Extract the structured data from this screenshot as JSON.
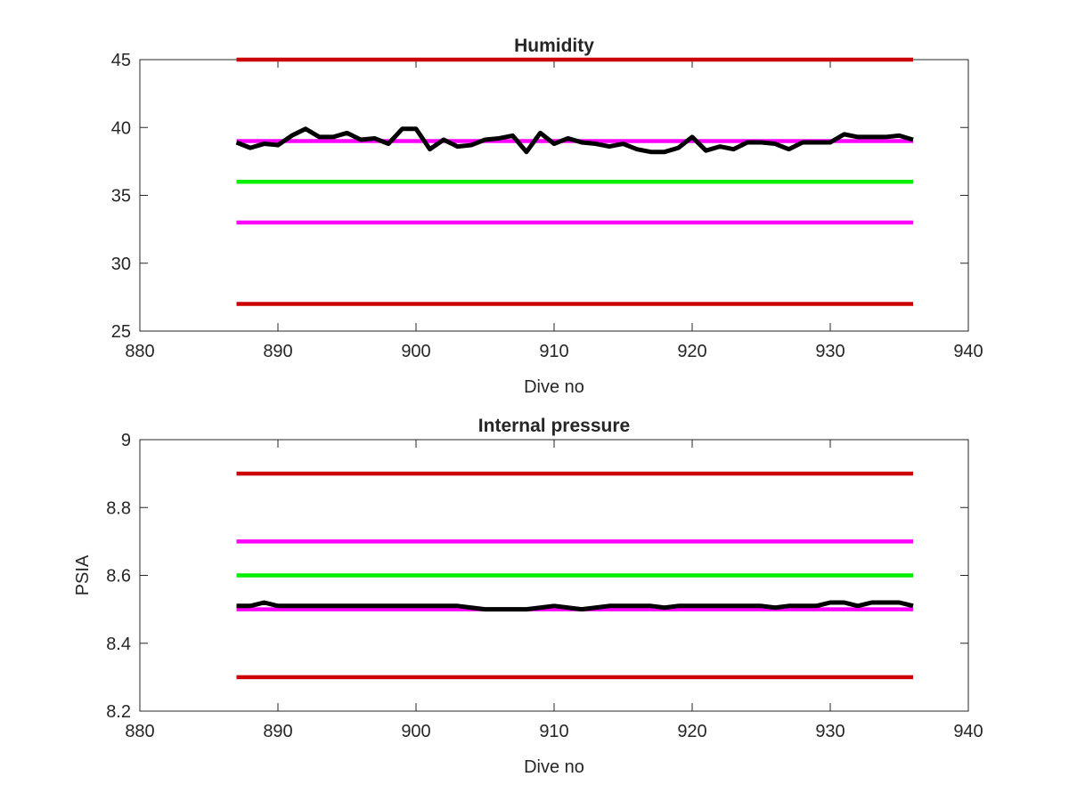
{
  "chart_data": [
    {
      "type": "line",
      "title": "Humidity",
      "xlabel": "Dive no",
      "ylabel": "",
      "xlim": [
        880,
        940
      ],
      "ylim": [
        25,
        45
      ],
      "xticks": [
        880,
        890,
        900,
        910,
        920,
        930,
        940
      ],
      "yticks": [
        25,
        30,
        35,
        40,
        45
      ],
      "grid": false,
      "series": [
        {
          "color": "#cc0000",
          "x": [
            887,
            936
          ],
          "y": [
            45,
            45
          ]
        },
        {
          "color": "#ff00ff",
          "x": [
            887,
            936
          ],
          "y": [
            39,
            39
          ]
        },
        {
          "color": "#00ee00",
          "x": [
            887,
            936
          ],
          "y": [
            36,
            36
          ]
        },
        {
          "color": "#ff00ff",
          "x": [
            887,
            936
          ],
          "y": [
            33,
            33
          ]
        },
        {
          "color": "#cc0000",
          "x": [
            887,
            936
          ],
          "y": [
            27,
            27
          ]
        },
        {
          "color": "#000000",
          "x": [
            887,
            888,
            889,
            890,
            891,
            892,
            893,
            894,
            895,
            896,
            897,
            898,
            899,
            900,
            901,
            902,
            903,
            904,
            905,
            906,
            907,
            908,
            909,
            910,
            911,
            912,
            913,
            914,
            915,
            916,
            917,
            918,
            919,
            920,
            921,
            922,
            923,
            924,
            925,
            926,
            927,
            928,
            929,
            930,
            931,
            932,
            933,
            934,
            935,
            936
          ],
          "y": [
            38.9,
            38.5,
            38.8,
            38.7,
            39.4,
            39.9,
            39.3,
            39.3,
            39.6,
            39.1,
            39.2,
            38.8,
            39.9,
            39.9,
            38.4,
            39.1,
            38.6,
            38.7,
            39.1,
            39.2,
            39.4,
            38.2,
            39.6,
            38.8,
            39.2,
            38.9,
            38.8,
            38.6,
            38.8,
            38.4,
            38.2,
            38.2,
            38.5,
            39.3,
            38.3,
            38.6,
            38.4,
            38.9,
            38.9,
            38.8,
            38.4,
            38.9,
            38.9,
            38.9,
            39.5,
            39.3,
            39.3,
            39.3,
            39.4,
            39.1
          ]
        }
      ]
    },
    {
      "type": "line",
      "title": "Internal pressure",
      "xlabel": "Dive no",
      "ylabel": "PSIA",
      "xlim": [
        880,
        940
      ],
      "ylim": [
        8.2,
        9
      ],
      "xticks": [
        880,
        890,
        900,
        910,
        920,
        930,
        940
      ],
      "yticks": [
        8.2,
        8.4,
        8.6,
        8.8,
        9
      ],
      "grid": false,
      "series": [
        {
          "color": "#cc0000",
          "x": [
            887,
            936
          ],
          "y": [
            8.9,
            8.9
          ]
        },
        {
          "color": "#ff00ff",
          "x": [
            887,
            936
          ],
          "y": [
            8.7,
            8.7
          ]
        },
        {
          "color": "#00ee00",
          "x": [
            887,
            936
          ],
          "y": [
            8.6,
            8.6
          ]
        },
        {
          "color": "#ff00ff",
          "x": [
            887,
            936
          ],
          "y": [
            8.5,
            8.5
          ]
        },
        {
          "color": "#cc0000",
          "x": [
            887,
            936
          ],
          "y": [
            8.3,
            8.3
          ]
        },
        {
          "color": "#000000",
          "x": [
            887,
            888,
            889,
            890,
            891,
            892,
            893,
            894,
            895,
            896,
            897,
            898,
            899,
            900,
            901,
            902,
            903,
            904,
            905,
            906,
            907,
            908,
            909,
            910,
            911,
            912,
            913,
            914,
            915,
            916,
            917,
            918,
            919,
            920,
            921,
            922,
            923,
            924,
            925,
            926,
            927,
            928,
            929,
            930,
            931,
            932,
            933,
            934,
            935,
            936
          ],
          "y": [
            8.51,
            8.51,
            8.52,
            8.51,
            8.51,
            8.51,
            8.51,
            8.51,
            8.51,
            8.51,
            8.51,
            8.51,
            8.51,
            8.51,
            8.51,
            8.51,
            8.51,
            8.505,
            8.5,
            8.5,
            8.5,
            8.5,
            8.505,
            8.51,
            8.505,
            8.5,
            8.505,
            8.51,
            8.51,
            8.51,
            8.51,
            8.505,
            8.51,
            8.51,
            8.51,
            8.51,
            8.51,
            8.51,
            8.51,
            8.505,
            8.51,
            8.51,
            8.51,
            8.52,
            8.52,
            8.51,
            8.52,
            8.52,
            8.52,
            8.51
          ]
        }
      ]
    }
  ]
}
